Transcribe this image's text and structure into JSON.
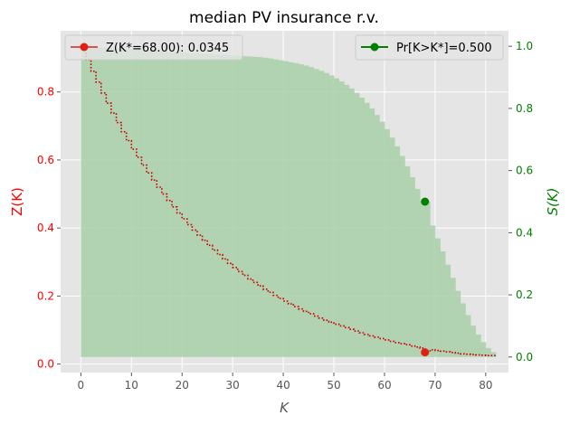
{
  "chart_data": {
    "type": "line",
    "title": "median PV insurance r.v.",
    "xlabel": "K",
    "ylabel_left": "Z(K)",
    "ylabel_right": "S(K)",
    "xlim": [
      -4,
      84.5
    ],
    "ylim_left": [
      -0.025,
      0.98
    ],
    "ylim_right": [
      -0.05,
      1.05
    ],
    "x_ticks": [
      "0",
      "10",
      "20",
      "30",
      "40",
      "50",
      "60",
      "70",
      "80"
    ],
    "y_left_ticks": [
      "0.0",
      "0.2",
      "0.4",
      "0.6",
      "0.8"
    ],
    "y_right_ticks": [
      "0.0",
      "0.2",
      "0.4",
      "0.6",
      "0.8",
      "1.0"
    ],
    "grid": true,
    "colors": {
      "left_axis": "#ff0000",
      "right_axis": "#008000",
      "z_line": "#cc0000",
      "marker_z": "#e02010",
      "marker_s": "#008000",
      "s_fill": "#a9d0a9",
      "background": "#e5e5e5"
    },
    "series": [
      {
        "name": "Z(K)",
        "axis": "left",
        "style": "dotted-step",
        "x": [
          0,
          1,
          2,
          3,
          4,
          5,
          6,
          7,
          8,
          9,
          10,
          11,
          12,
          13,
          14,
          15,
          16,
          17,
          18,
          19,
          20,
          21,
          22,
          23,
          24,
          25,
          26,
          27,
          28,
          29,
          30,
          31,
          32,
          33,
          34,
          35,
          36,
          37,
          38,
          39,
          40,
          41,
          42,
          43,
          44,
          45,
          46,
          47,
          48,
          49,
          50,
          51,
          52,
          53,
          54,
          55,
          56,
          57,
          58,
          59,
          60,
          61,
          62,
          63,
          64,
          65,
          66,
          67,
          68,
          69,
          70,
          71,
          72,
          73,
          74,
          75,
          76,
          77,
          78,
          79,
          80,
          81
        ],
        "values": [
          0.93,
          0.895,
          0.861,
          0.829,
          0.797,
          0.767,
          0.738,
          0.71,
          0.683,
          0.657,
          0.632,
          0.608,
          0.585,
          0.562,
          0.541,
          0.52,
          0.5,
          0.481,
          0.462,
          0.444,
          0.427,
          0.41,
          0.394,
          0.379,
          0.364,
          0.349,
          0.335,
          0.322,
          0.309,
          0.296,
          0.284,
          0.272,
          0.261,
          0.25,
          0.24,
          0.23,
          0.22,
          0.211,
          0.202,
          0.193,
          0.185,
          0.177,
          0.169,
          0.162,
          0.155,
          0.148,
          0.141,
          0.135,
          0.129,
          0.123,
          0.117,
          0.112,
          0.107,
          0.102,
          0.097,
          0.092,
          0.087,
          0.083,
          0.079,
          0.075,
          0.071,
          0.067,
          0.063,
          0.06,
          0.057,
          0.053,
          0.05,
          0.047,
          0.0345,
          0.042,
          0.04,
          0.038,
          0.036,
          0.034,
          0.032,
          0.03,
          0.029,
          0.028,
          0.027,
          0.026,
          0.025,
          0.025
        ]
      },
      {
        "name": "S(K)",
        "axis": "right",
        "style": "filled-step",
        "x": [
          0,
          1,
          2,
          3,
          4,
          5,
          6,
          7,
          8,
          9,
          10,
          11,
          12,
          13,
          14,
          15,
          16,
          17,
          18,
          19,
          20,
          21,
          22,
          23,
          24,
          25,
          26,
          27,
          28,
          29,
          30,
          31,
          32,
          33,
          34,
          35,
          36,
          37,
          38,
          39,
          40,
          41,
          42,
          43,
          44,
          45,
          46,
          47,
          48,
          49,
          50,
          51,
          52,
          53,
          54,
          55,
          56,
          57,
          58,
          59,
          60,
          61,
          62,
          63,
          64,
          65,
          66,
          67,
          68,
          69,
          70,
          71,
          72,
          73,
          74,
          75,
          76,
          77,
          78,
          79,
          80,
          81
        ],
        "values": [
          1.0,
          0.999,
          0.998,
          0.997,
          0.996,
          0.995,
          0.994,
          0.993,
          0.992,
          0.991,
          0.99,
          0.989,
          0.988,
          0.987,
          0.986,
          0.985,
          0.984,
          0.983,
          0.982,
          0.981,
          0.98,
          0.979,
          0.978,
          0.977,
          0.976,
          0.975,
          0.974,
          0.973,
          0.972,
          0.971,
          0.97,
          0.969,
          0.968,
          0.967,
          0.966,
          0.965,
          0.963,
          0.961,
          0.958,
          0.955,
          0.952,
          0.949,
          0.946,
          0.942,
          0.938,
          0.933,
          0.927,
          0.921,
          0.914,
          0.906,
          0.897,
          0.887,
          0.876,
          0.864,
          0.85,
          0.835,
          0.818,
          0.8,
          0.779,
          0.757,
          0.733,
          0.706,
          0.678,
          0.647,
          0.614,
          0.579,
          0.541,
          0.502,
          0.5,
          0.423,
          0.382,
          0.34,
          0.297,
          0.255,
          0.213,
          0.173,
          0.135,
          0.101,
          0.072,
          0.048,
          0.029,
          0.016
        ]
      }
    ],
    "markers": [
      {
        "name": "Z(K*=68.00): 0.0345",
        "axis": "left",
        "x": 68,
        "y": 0.0345
      },
      {
        "name": "Pr[K>K*]=0.500",
        "axis": "right",
        "x": 68,
        "y": 0.5
      }
    ],
    "legends": [
      {
        "placement": "top-left",
        "label": "Z(K*=68.00): 0.0345"
      },
      {
        "placement": "top-right",
        "label": "Pr[K>K*]=0.500"
      }
    ]
  }
}
